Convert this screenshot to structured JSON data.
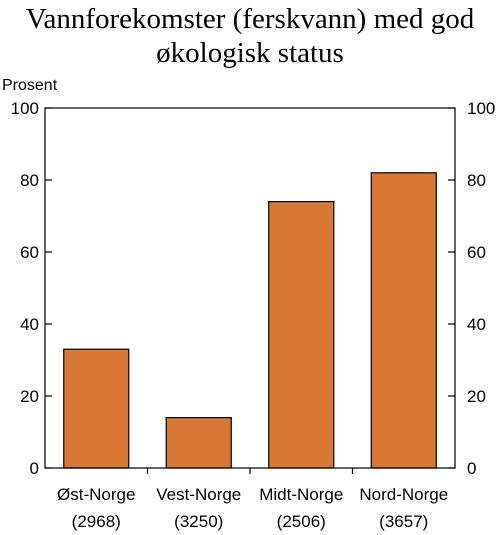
{
  "chart_data": {
    "type": "bar",
    "title_lines": [
      "Vannforekomster (ferskvann) med god",
      "økologisk status"
    ],
    "ylabel": "Prosent",
    "categories": [
      {
        "name": "Øst-Norge",
        "count": "(2968)"
      },
      {
        "name": "Vest-Norge",
        "count": "(3250)"
      },
      {
        "name": "Midt-Norge",
        "count": "(2506)"
      },
      {
        "name": "Nord-Norge",
        "count": "(3657)"
      }
    ],
    "values": [
      33,
      14,
      74,
      82
    ],
    "ylim": [
      0,
      100
    ],
    "yticks": [
      0,
      20,
      40,
      60,
      80,
      100
    ],
    "right_axis_mirrored": true,
    "grid": false,
    "colors": {
      "bar": "#D97834",
      "bar_edge": "#000000",
      "axis": "#000000"
    }
  }
}
